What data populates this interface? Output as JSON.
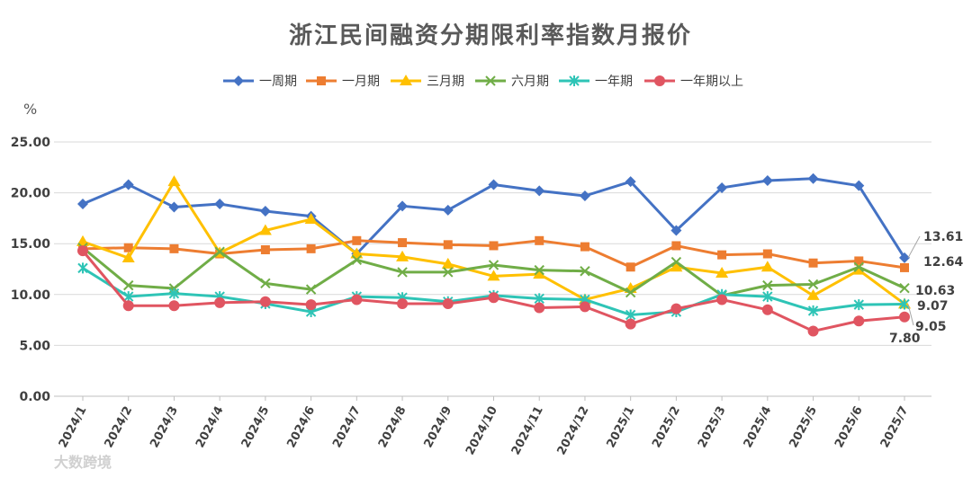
{
  "chart_data": {
    "type": "line",
    "title": "浙江民间融资分期限利率指数月报价",
    "ylabel": "%",
    "xlabel": "",
    "ylim": [
      0,
      25
    ],
    "yticks": [
      "0.00",
      "5.00",
      "10.00",
      "15.00",
      "20.00",
      "25.00"
    ],
    "ytick_values": [
      0,
      5,
      10,
      15,
      20,
      25
    ],
    "grid": true,
    "legend_position": "top",
    "categories": [
      "2024/1",
      "2024/2",
      "2024/3",
      "2024/4",
      "2024/5",
      "2024/6",
      "2024/7",
      "2024/8",
      "2024/9",
      "2024/10",
      "2024/11",
      "2024/12",
      "2025/1",
      "2025/2",
      "2025/3",
      "2025/4",
      "2025/5",
      "2025/6",
      "2025/7"
    ],
    "series": [
      {
        "name": "一周期",
        "color": "#4472C4",
        "marker": "diamond",
        "values": [
          18.9,
          20.8,
          18.6,
          18.9,
          18.2,
          17.7,
          14.0,
          18.7,
          18.3,
          20.8,
          20.2,
          19.7,
          21.1,
          16.3,
          20.5,
          21.2,
          21.4,
          20.7,
          13.61
        ]
      },
      {
        "name": "一月期",
        "color": "#ED7D31",
        "marker": "square",
        "values": [
          14.5,
          14.6,
          14.5,
          14.0,
          14.4,
          14.5,
          15.3,
          15.1,
          14.9,
          14.8,
          15.3,
          14.7,
          12.7,
          14.8,
          13.9,
          14.0,
          13.1,
          13.3,
          12.64
        ]
      },
      {
        "name": "三月期",
        "color": "#FFC000",
        "marker": "triangle",
        "values": [
          15.2,
          13.6,
          21.1,
          14.1,
          16.3,
          17.4,
          14.0,
          13.7,
          13.0,
          11.8,
          12.0,
          9.5,
          10.6,
          12.7,
          12.1,
          12.7,
          9.9,
          12.4,
          9.07
        ]
      },
      {
        "name": "六月期",
        "color": "#70AD47",
        "marker": "x",
        "values": [
          14.6,
          10.9,
          10.6,
          14.2,
          11.1,
          10.5,
          13.4,
          12.2,
          12.2,
          12.9,
          12.4,
          12.3,
          10.2,
          13.2,
          9.9,
          10.9,
          11.0,
          12.7,
          10.63
        ]
      },
      {
        "name": "一年期",
        "color": "#2EC4B6",
        "marker": "star",
        "values": [
          12.6,
          9.8,
          10.1,
          9.8,
          9.1,
          8.3,
          9.8,
          9.7,
          9.3,
          9.9,
          9.6,
          9.5,
          8.0,
          8.3,
          10.0,
          9.8,
          8.4,
          9.0,
          9.05
        ]
      },
      {
        "name": "一年期以上",
        "color": "#E05561",
        "marker": "circle",
        "values": [
          14.3,
          8.9,
          8.9,
          9.2,
          9.3,
          9.0,
          9.5,
          9.1,
          9.1,
          9.7,
          8.7,
          8.8,
          7.1,
          8.6,
          9.5,
          8.5,
          6.4,
          7.4,
          7.8
        ]
      }
    ],
    "end_labels": [
      "13.61",
      "12.64",
      "10.63",
      "9.07",
      "9.05",
      "7.80"
    ]
  },
  "watermark": {
    "text": "大数跨境"
  }
}
